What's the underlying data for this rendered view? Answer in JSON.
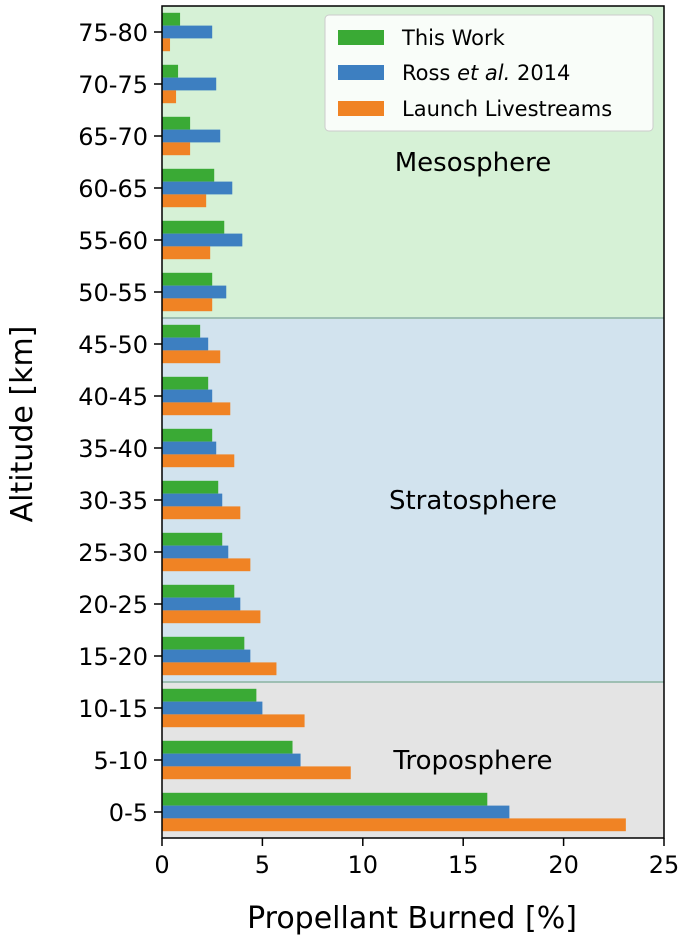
{
  "chart_data": {
    "type": "bar",
    "orientation": "horizontal",
    "categories": [
      "0-5",
      "5-10",
      "10-15",
      "15-20",
      "20-25",
      "25-30",
      "30-35",
      "35-40",
      "40-45",
      "45-50",
      "50-55",
      "55-60",
      "60-65",
      "65-70",
      "70-75",
      "75-80"
    ],
    "series": [
      {
        "name": "This Work",
        "color": "#3aaa35",
        "values": [
          16.2,
          6.5,
          4.7,
          4.1,
          3.6,
          3.0,
          2.8,
          2.5,
          2.3,
          1.9,
          2.5,
          3.1,
          2.6,
          1.4,
          0.8,
          0.9
        ]
      },
      {
        "name": "Ross et al. 2014",
        "color": "#3d7fc1",
        "values": [
          17.3,
          6.9,
          5.0,
          4.4,
          3.9,
          3.3,
          3.0,
          2.7,
          2.5,
          2.3,
          3.2,
          4.0,
          3.5,
          2.9,
          2.7,
          2.5
        ]
      },
      {
        "name": "Launch Livestreams",
        "color": "#f08324",
        "values": [
          23.1,
          9.4,
          7.1,
          5.7,
          4.9,
          4.4,
          3.9,
          3.6,
          3.4,
          2.9,
          2.5,
          2.4,
          2.2,
          1.4,
          0.7,
          0.4
        ]
      }
    ],
    "legend_display": {
      "ross_prefix": "Ross ",
      "ross_italic": "et al.",
      "ross_suffix": " 2014"
    },
    "xlabel": "Propellant Burned [%]",
    "ylabel": "Altitude [km]",
    "xlim": [
      0,
      25
    ],
    "xticks": [
      0,
      5,
      10,
      15,
      20,
      25
    ],
    "grid": false,
    "legend_position": "top-right",
    "regions": [
      {
        "label": "Troposphere",
        "from_index": 0,
        "to_index": 2,
        "color": "#e4e4e4"
      },
      {
        "label": "Stratosphere",
        "from_index": 3,
        "to_index": 9,
        "color": "#d2e3ee"
      },
      {
        "label": "Mesosphere",
        "from_index": 10,
        "to_index": 15,
        "color": "#d6f1d6"
      }
    ]
  }
}
